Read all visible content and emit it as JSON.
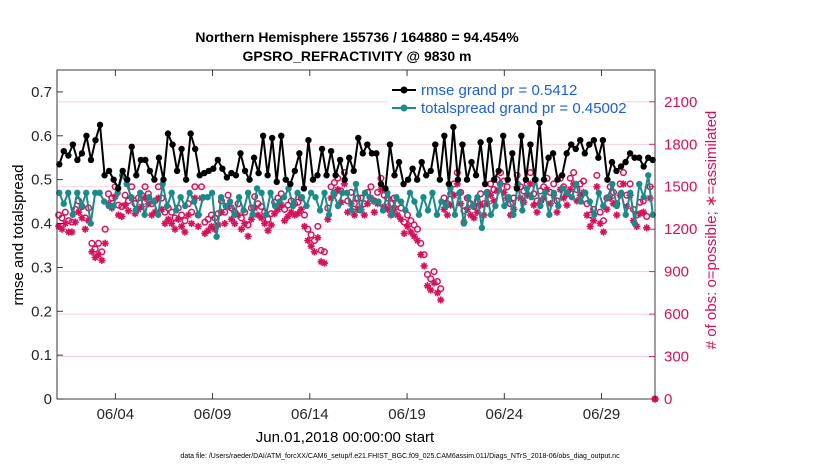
{
  "chart_data": {
    "type": "line",
    "title_line1": "Northern Hemisphere 155736 / 164880 = 94.454%",
    "title_line2": "GPSRO_REFRACTIVITY @ 9830 m",
    "xlabel": "Jun.01,2018 00:00:00 start",
    "ylabel_left": "rmse and totalspread",
    "ylabel_right": "# of obs: o=possible; ∗=assimilated",
    "footnote": "data file: /Users/raeder/DAI/ATM_forcXX/CAM6_setup/f.e21.FHIST_BGC.f09_025.CAM6assim.011/Diags_NTrS_2018-06/obs_diag_output.nc",
    "x_range_days": [
      0,
      30.75
    ],
    "xticks": [
      {
        "day": 3,
        "label": "06/04"
      },
      {
        "day": 8,
        "label": "06/09"
      },
      {
        "day": 13,
        "label": "06/14"
      },
      {
        "day": 18,
        "label": "06/19"
      },
      {
        "day": 23,
        "label": "06/24"
      },
      {
        "day": 28,
        "label": "06/29"
      }
    ],
    "ylim_left": [
      0,
      0.75
    ],
    "yticks_left": [
      "0",
      "0.1",
      "0.2",
      "0.3",
      "0.4",
      "0.5",
      "0.6",
      "0.7"
    ],
    "ylim_right": [
      0,
      2325
    ],
    "yticks_right": [
      "0",
      "300",
      "600",
      "900",
      "1200",
      "1500",
      "1800",
      "2100"
    ],
    "series": [
      {
        "name": "rmse",
        "legend": "rmse grand pr = 0.5412",
        "color": "#000000",
        "axis": "left",
        "values": [
          0.535,
          0.565,
          0.555,
          0.58,
          0.545,
          0.56,
          0.6,
          0.545,
          0.59,
          0.625,
          0.51,
          0.52,
          0.5,
          0.48,
          0.52,
          0.5,
          0.575,
          0.51,
          0.545,
          0.545,
          0.52,
          0.5,
          0.55,
          0.5,
          0.605,
          0.58,
          0.52,
          0.57,
          0.5,
          0.605,
          0.57,
          0.51,
          0.515,
          0.52,
          0.525,
          0.545,
          0.525,
          0.505,
          0.515,
          0.51,
          0.56,
          0.52,
          0.5,
          0.55,
          0.515,
          0.6,
          0.51,
          0.595,
          0.495,
          0.6,
          0.5,
          0.49,
          0.52,
          0.56,
          0.48,
          0.59,
          0.5,
          0.51,
          0.57,
          0.51,
          0.565,
          0.51,
          0.545,
          0.5,
          0.55,
          0.52,
          0.595,
          0.56,
          0.58,
          0.56,
          0.56,
          0.49,
          0.48,
          0.58,
          0.51,
          0.54,
          0.49,
          0.5,
          0.525,
          0.5,
          0.54,
          0.51,
          0.52,
          0.58,
          0.5,
          0.6,
          0.49,
          0.62,
          0.5,
          0.58,
          0.5,
          0.54,
          0.51,
          0.585,
          0.49,
          0.59,
          0.5,
          0.52,
          0.6,
          0.5,
          0.56,
          0.48,
          0.6,
          0.5,
          0.58,
          0.5,
          0.63,
          0.5,
          0.55,
          0.56,
          0.5,
          0.51,
          0.56,
          0.58,
          0.57,
          0.59,
          0.56,
          0.58,
          0.59,
          0.55,
          0.59,
          0.5,
          0.54,
          0.52,
          0.53,
          0.54,
          0.56,
          0.55,
          0.55,
          0.53,
          0.55,
          0.545
        ]
      },
      {
        "name": "totalspread",
        "legend": "totalspread grand pr = 0.45002",
        "color": "#1a8a8a",
        "axis": "left",
        "values": [
          0.47,
          0.445,
          0.47,
          0.42,
          0.47,
          0.44,
          0.47,
          0.4,
          0.47,
          0.47,
          0.45,
          0.44,
          0.44,
          0.47,
          0.51,
          0.49,
          0.46,
          0.43,
          0.47,
          0.42,
          0.46,
          0.45,
          0.42,
          0.49,
          0.44,
          0.47,
          0.43,
          0.46,
          0.44,
          0.47,
          0.45,
          0.42,
          0.46,
          0.46,
          0.47,
          0.37,
          0.46,
          0.44,
          0.45,
          0.42,
          0.46,
          0.43,
          0.47,
          0.42,
          0.48,
          0.47,
          0.42,
          0.47,
          0.44,
          0.45,
          0.46,
          0.48,
          0.44,
          0.47,
          0.46,
          0.44,
          0.47,
          0.46,
          0.43,
          0.47,
          0.42,
          0.47,
          0.44,
          0.47,
          0.47,
          0.43,
          0.49,
          0.43,
          0.47,
          0.46,
          0.45,
          0.45,
          0.43,
          0.47,
          0.42,
          0.46,
          0.45,
          0.43,
          0.47,
          0.45,
          0.42,
          0.46,
          0.43,
          0.47,
          0.42,
          0.45,
          0.44,
          0.48,
          0.42,
          0.47,
          0.4,
          0.46,
          0.44,
          0.46,
          0.39,
          0.47,
          0.42,
          0.44,
          0.49,
          0.44,
          0.46,
          0.42,
          0.49,
          0.43,
          0.48,
          0.46,
          0.5,
          0.44,
          0.47,
          0.42,
          0.47,
          0.44,
          0.48,
          0.47,
          0.46,
          0.49,
          0.45,
          0.47,
          0.45,
          0.42,
          0.47,
          0.44,
          0.46,
          0.49,
          0.44,
          0.47,
          0.42,
          0.47,
          0.4,
          0.49,
          0.46,
          0.51,
          0.42
        ]
      },
      {
        "name": "obs possible",
        "legend": "",
        "color": "#d6115a",
        "marker": "o",
        "axis": "right",
        "values": [
          1300,
          1280,
          1320,
          1260,
          1250,
          1340,
          1400,
          1360,
          1280,
          1350,
          1100,
          1060,
          1100,
          1040,
          1200,
          1450,
          1420,
          1500,
          1370,
          1360,
          1440,
          1400,
          1500,
          1380,
          1420,
          1440,
          1500,
          1450,
          1380,
          1400,
          1500,
          1420,
          1320,
          1350,
          1320,
          1280,
          1350,
          1300,
          1260,
          1380,
          1320,
          1500,
          1300,
          1500,
          1250,
          1270,
          1300,
          1280,
          1310,
          1400,
          1320,
          1440,
          1350,
          1320,
          1380,
          1280,
          1320,
          1230,
          1350,
          1430,
          1380,
          1360,
          1320,
          1270,
          1310,
          1390,
          1420,
          1450,
          1340,
          1370,
          1400,
          1380,
          1390,
          1420,
          1300,
          1200,
          1160,
          1120,
          1220,
          1050,
          1040,
          1350,
          1500,
          1530,
          1560,
          1470,
          1600,
          1400,
          1460,
          1380,
          1420,
          1420,
          1380,
          1460,
          1500,
          1400,
          1460,
          1560,
          1440,
          1420,
          1380,
          1420,
          1380,
          1350,
          1250,
          1300,
          1260,
          1230,
          1200,
          1100,
          1020,
          880,
          850,
          900,
          830,
          780,
          1420,
          1380,
          1450,
          1520,
          1600,
          1460,
          1330,
          1420,
          1380,
          1360,
          1400,
          1450,
          1380,
          1460,
          1520,
          1480,
          1550,
          1600,
          1540,
          1500,
          1380,
          1420,
          1580,
          1500,
          1470,
          1520,
          1600,
          1450,
          1400,
          1470,
          1500,
          1560,
          1460,
          1520,
          1400,
          1560,
          1500,
          1450,
          1560,
          1600,
          1480,
          1520,
          1540,
          1380,
          1300,
          1340,
          1580,
          1320,
          1260,
          1420,
          1500,
          1460,
          1380,
          1520,
          1600,
          1440,
          1520,
          1340,
          1300,
          1390,
          1400,
          1290,
          1500,
          0
        ]
      },
      {
        "name": "obs assimilated",
        "legend": "",
        "color": "#d6115a",
        "marker": "*",
        "axis": "right",
        "values": [
          1220,
          1200,
          1240,
          1180,
          1180,
          1250,
          1320,
          1280,
          1200,
          1260,
          1040,
          1000,
          1020,
          980,
          1100,
          1380,
          1350,
          1430,
          1300,
          1290,
          1370,
          1330,
          1420,
          1310,
          1340,
          1360,
          1420,
          1380,
          1300,
          1320,
          1420,
          1340,
          1240,
          1270,
          1240,
          1200,
          1270,
          1220,
          1180,
          1300,
          1240,
          1420,
          1220,
          1420,
          1170,
          1190,
          1220,
          1200,
          1230,
          1320,
          1240,
          1360,
          1270,
          1240,
          1300,
          1200,
          1240,
          1150,
          1270,
          1350,
          1300,
          1280,
          1240,
          1190,
          1230,
          1310,
          1340,
          1370,
          1260,
          1290,
          1320,
          1300,
          1310,
          1340,
          1220,
          1120,
          1080,
          1040,
          1140,
          970,
          960,
          1270,
          1420,
          1450,
          1480,
          1390,
          1520,
          1320,
          1380,
          1300,
          1340,
          1340,
          1300,
          1380,
          1420,
          1320,
          1380,
          1480,
          1360,
          1340,
          1300,
          1340,
          1300,
          1270,
          1170,
          1220,
          1180,
          1150,
          1120,
          1020,
          940,
          800,
          770,
          820,
          750,
          700,
          1340,
          1300,
          1370,
          1440,
          1520,
          1380,
          1250,
          1340,
          1300,
          1280,
          1320,
          1370,
          1300,
          1380,
          1440,
          1400,
          1470,
          1520,
          1460,
          1420,
          1300,
          1340,
          1500,
          1420,
          1390,
          1440,
          1520,
          1370,
          1320,
          1390,
          1420,
          1480,
          1380,
          1440,
          1320,
          1480,
          1420,
          1370,
          1480,
          1520,
          1400,
          1440,
          1460,
          1300,
          1220,
          1260,
          1500,
          1240,
          1180,
          1340,
          1420,
          1380,
          1300,
          1440,
          1520,
          1360,
          1440,
          1260,
          1220,
          1310,
          1320,
          1210,
          1420,
          0
        ]
      }
    ]
  }
}
